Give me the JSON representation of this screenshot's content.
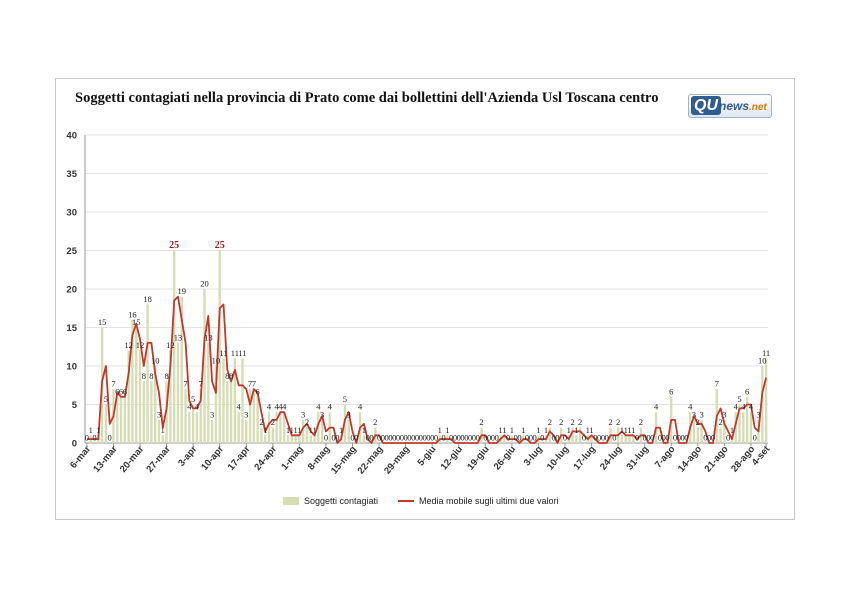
{
  "chart_data": {
    "type": "bar",
    "title": "Soggetti contagiati nella provincia di Prato come dai bollettini dell'Azienda Usl Toscana centro",
    "logo": {
      "brand": "QU",
      "name": "news",
      "tld": ".net"
    },
    "yticks": [
      "0",
      "5",
      "10",
      "15",
      "20",
      "25",
      "30",
      "35",
      "40"
    ],
    "ylim": [
      0,
      40
    ],
    "xtick_labels": [
      "6-mar",
      "13-mar",
      "20-mar",
      "27-mar",
      "3-apr",
      "10-apr",
      "17-apr",
      "24-apr",
      "1-mag",
      "8-mag",
      "15-mag",
      "22-mag",
      "29-mag",
      "5-giu",
      "12-giu",
      "19-giu",
      "26-giu",
      "3-lug",
      "10-lug",
      "17-lug",
      "24-lug",
      "31-lug",
      "7-ago",
      "14-ago",
      "21-ago",
      "28-ago",
      "4-set"
    ],
    "legend": {
      "position": "bottom",
      "bar_label": "Soggetti contagiati",
      "line_label": "Media mobile sugli ultimi due valori"
    },
    "colors": {
      "bar": "#d6dcb4",
      "line": "#c0392b",
      "grid": "#e3e3e3"
    },
    "series": [
      {
        "name": "Soggetti contagiati",
        "values": [
          0,
          1,
          0,
          1,
          15,
          5,
          0,
          7,
          6,
          6,
          6,
          12,
          16,
          15,
          12,
          8,
          18,
          8,
          10,
          3,
          1,
          8,
          12,
          25,
          13,
          19,
          7,
          4,
          5,
          4,
          7,
          20,
          13,
          3,
          10,
          25,
          11,
          8,
          8,
          11,
          4,
          11,
          3,
          7,
          7,
          6,
          2,
          1,
          4,
          2,
          4,
          4,
          4,
          1,
          1,
          1,
          1,
          3,
          2,
          1,
          1,
          4,
          3,
          0,
          4,
          0,
          0,
          1,
          5,
          3,
          0,
          0,
          4,
          1,
          0,
          0,
          2,
          0,
          0,
          0,
          0,
          0,
          0,
          0,
          0,
          0,
          0,
          0,
          0,
          0,
          0,
          0,
          0,
          1,
          0,
          1,
          0,
          0,
          0,
          0,
          0,
          0,
          0,
          0,
          2,
          0,
          0,
          0,
          0,
          1,
          1,
          0,
          1,
          0,
          0,
          1,
          0,
          0,
          0,
          1,
          0,
          1,
          2,
          0,
          0,
          2,
          0,
          1,
          2,
          1,
          2,
          0,
          1,
          1,
          0,
          0,
          0,
          0,
          2,
          0,
          2,
          1,
          1,
          1,
          1,
          0,
          2,
          0,
          0,
          0,
          4,
          0,
          0,
          0,
          6,
          0,
          0,
          0,
          0,
          4,
          3,
          2,
          3,
          0,
          0,
          0,
          7,
          2,
          3,
          0,
          1,
          4,
          5,
          4,
          6,
          4,
          0,
          3,
          10,
          11
        ]
      },
      {
        "name": "Media mobile sugli ultimi due valori",
        "values": [
          0.5,
          0.5,
          0.5,
          0.5,
          8,
          10,
          2.5,
          3.5,
          6.5,
          6,
          6,
          9,
          14,
          15.5,
          13.5,
          10,
          13,
          13,
          9,
          6.5,
          2,
          4.5,
          10,
          18.5,
          19,
          16,
          13,
          5.5,
          4.5,
          4.5,
          5.5,
          13.5,
          16.5,
          8,
          6.5,
          17.5,
          18,
          9.5,
          8,
          9.5,
          7.5,
          7.5,
          7,
          5,
          7,
          6.5,
          4,
          1.5,
          2.5,
          3,
          3,
          4,
          4,
          2.5,
          1,
          1,
          1,
          2,
          2.5,
          1.5,
          1,
          2.5,
          3.5,
          1.5,
          2,
          2,
          0,
          0.5,
          3,
          4,
          1.5,
          0,
          2,
          2.5,
          0.5,
          0,
          1,
          1,
          0,
          0,
          0,
          0,
          0,
          0,
          0,
          0,
          0,
          0,
          0,
          0,
          0,
          0,
          0,
          0.5,
          0.5,
          0.5,
          0.5,
          0,
          0,
          0,
          0,
          0,
          0,
          0,
          1,
          1,
          0,
          0,
          0,
          0.5,
          1,
          0.5,
          0.5,
          0.5,
          0,
          0.5,
          0.5,
          0,
          0,
          0.5,
          0.5,
          0.5,
          1.5,
          1,
          0,
          1,
          1,
          0.5,
          1.5,
          1.5,
          1.5,
          1,
          0.5,
          1,
          0.5,
          0,
          0,
          0,
          1,
          1,
          1,
          1.5,
          1,
          1,
          1,
          0.5,
          1,
          1,
          0,
          0,
          2,
          2,
          0,
          0,
          3,
          3,
          0,
          0,
          0,
          2,
          3.5,
          2.5,
          2.5,
          1.5,
          0,
          0,
          3.5,
          4.5,
          2.5,
          1.5,
          0.5,
          2.5,
          4.5,
          4.5,
          5,
          5,
          2,
          1.5,
          6.5,
          8.5
        ]
      }
    ]
  }
}
